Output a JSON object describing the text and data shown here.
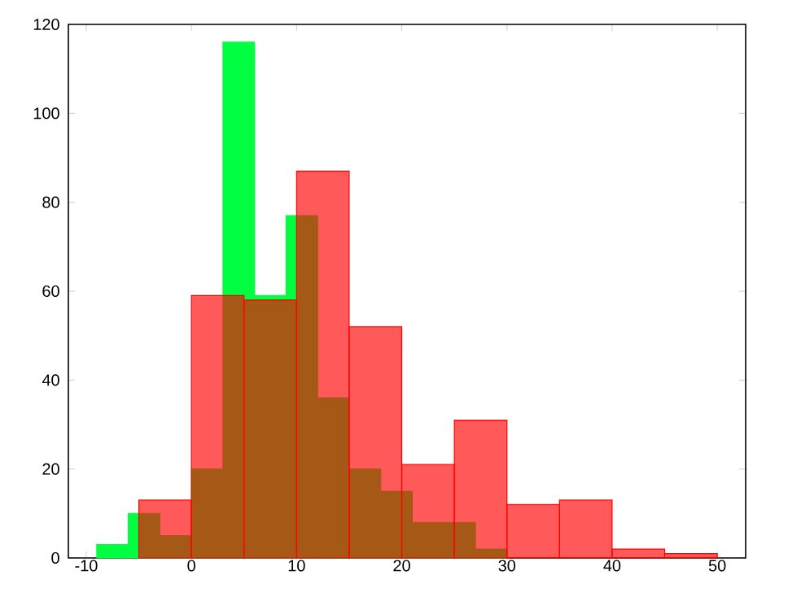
{
  "chart_data": {
    "type": "histogram",
    "bins": [
      -9,
      -6,
      -3,
      0,
      3,
      6,
      9,
      12,
      15,
      18,
      21,
      24,
      27,
      30
    ],
    "series": [
      {
        "color": "#00ff40",
        "values": [
          3,
          10,
          5,
          20,
          116,
          59,
          77,
          36,
          20,
          15,
          8,
          8,
          2
        ]
      },
      {
        "color": "#ff0000",
        "bins": [
          -5,
          0,
          5,
          10,
          15,
          20,
          25,
          30,
          35,
          40,
          45,
          50
        ],
        "values": [
          13,
          59,
          58,
          87,
          52,
          21,
          31,
          12,
          13,
          2,
          1
        ]
      }
    ],
    "xlim": [
      -11.7,
      52.7
    ],
    "ylim": [
      0,
      120
    ],
    "xticks": [
      -10,
      0,
      10,
      20,
      30,
      40,
      50
    ],
    "yticks": [
      0,
      20,
      40,
      60,
      80,
      100,
      120
    ],
    "grid": false
  }
}
